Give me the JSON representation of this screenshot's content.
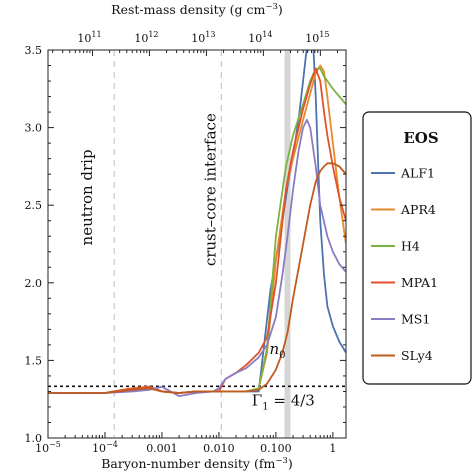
{
  "chart_data": {
    "type": "line",
    "xlabel": "Baryon-number density (fm",
    "xlabel_sup": "−3",
    "xlabel_end": ")",
    "top_xlabel": "Rest-mass density (g cm",
    "top_xlabel_sup": "−3",
    "top_xlabel_end": ")",
    "xscale": "log",
    "xlim": [
      1e-05,
      1.7
    ],
    "ylim": [
      1.0,
      3.5
    ],
    "x_ticks": [
      {
        "value": 1e-05,
        "label": "10",
        "sup": "−5"
      },
      {
        "value": 0.0001,
        "label": "10",
        "sup": "−4"
      },
      {
        "value": 0.001,
        "label": "0.001",
        "sup": ""
      },
      {
        "value": 0.01,
        "label": "0.010",
        "sup": ""
      },
      {
        "value": 0.1,
        "label": "0.100",
        "sup": ""
      },
      {
        "value": 1,
        "label": "1",
        "sup": ""
      }
    ],
    "y_ticks": [
      {
        "value": 1.0,
        "label": "1.0"
      },
      {
        "value": 1.5,
        "label": "1.5"
      },
      {
        "value": 2.0,
        "label": "2.0"
      },
      {
        "value": 2.5,
        "label": "2.5"
      },
      {
        "value": 3.0,
        "label": "3.0"
      },
      {
        "value": 3.5,
        "label": "3.5"
      }
    ],
    "top_ticks": [
      {
        "value": 6.03e-05,
        "label": "10",
        "sup": "11"
      },
      {
        "value": 0.000603,
        "label": "10",
        "sup": "12"
      },
      {
        "value": 0.00603,
        "label": "10",
        "sup": "13"
      },
      {
        "value": 0.0603,
        "label": "10",
        "sup": "14"
      },
      {
        "value": 0.603,
        "label": "10",
        "sup": "15"
      }
    ],
    "annotations": {
      "neutron_drip": {
        "label": "neutron drip",
        "x": 0.000145
      },
      "crust_core": {
        "label": "crust–core interface",
        "x": 0.011
      },
      "n0": {
        "label": "n",
        "sub": "0",
        "x": 0.16
      },
      "gamma": {
        "label": "Γ",
        "sub": "1",
        "rest": " = 4/3",
        "y": 1.3333
      }
    },
    "legend": {
      "title": "EOS",
      "position": "right, outside plot"
    },
    "series": [
      {
        "name": "ALF1",
        "color": "#4d72b0",
        "x": [
          1e-05,
          0.0001,
          0.0003,
          0.0006,
          0.001,
          0.002,
          0.004,
          0.008,
          0.015,
          0.03,
          0.05,
          0.08,
          0.1,
          0.13,
          0.16,
          0.2,
          0.25,
          0.3,
          0.35,
          0.4,
          0.45,
          0.5,
          0.6,
          0.7,
          0.8,
          1.0,
          1.3,
          1.7
        ],
        "y": [
          1.29,
          1.29,
          1.32,
          1.33,
          1.3,
          1.29,
          1.3,
          1.3,
          1.3,
          1.3,
          1.3,
          1.95,
          2.15,
          2.4,
          2.62,
          2.82,
          3.05,
          3.3,
          3.52,
          3.6,
          3.55,
          3.2,
          2.4,
          2.05,
          1.85,
          1.72,
          1.62,
          1.55
        ]
      },
      {
        "name": "APR4",
        "color": "#e8892b",
        "x": [
          1e-05,
          0.0001,
          0.0003,
          0.0006,
          0.001,
          0.002,
          0.004,
          0.008,
          0.015,
          0.03,
          0.05,
          0.07,
          0.1,
          0.15,
          0.2,
          0.3,
          0.4,
          0.5,
          0.6,
          0.7,
          0.8,
          1.0,
          1.3,
          1.7
        ],
        "y": [
          1.29,
          1.29,
          1.32,
          1.33,
          1.3,
          1.29,
          1.3,
          1.3,
          1.3,
          1.3,
          1.32,
          1.55,
          2.15,
          2.6,
          2.8,
          3.05,
          3.22,
          3.35,
          3.4,
          3.36,
          3.2,
          2.9,
          2.55,
          2.25
        ]
      },
      {
        "name": "H4",
        "color": "#7cb342",
        "x": [
          1e-05,
          0.0001,
          0.0003,
          0.0006,
          0.001,
          0.002,
          0.004,
          0.008,
          0.015,
          0.03,
          0.05,
          0.07,
          0.1,
          0.15,
          0.2,
          0.3,
          0.4,
          0.5,
          0.6,
          0.7,
          0.8,
          1.0,
          1.3,
          1.7
        ],
        "y": [
          1.29,
          1.29,
          1.32,
          1.33,
          1.3,
          1.29,
          1.3,
          1.3,
          1.3,
          1.3,
          1.32,
          1.58,
          2.3,
          2.75,
          2.95,
          3.15,
          3.3,
          3.38,
          3.38,
          3.33,
          3.3,
          3.25,
          3.2,
          3.15
        ]
      },
      {
        "name": "MPA1",
        "color": "#e0522b",
        "x": [
          1e-05,
          0.0001,
          0.0003,
          0.0006,
          0.001,
          0.002,
          0.004,
          0.008,
          0.01,
          0.013,
          0.02,
          0.03,
          0.05,
          0.07,
          0.1,
          0.15,
          0.2,
          0.3,
          0.4,
          0.5,
          0.6,
          0.7,
          0.8,
          1.0,
          1.3,
          1.7
        ],
        "y": [
          1.29,
          1.29,
          1.32,
          1.33,
          1.3,
          1.29,
          1.3,
          1.3,
          1.3,
          1.38,
          1.42,
          1.47,
          1.55,
          1.65,
          2.0,
          2.6,
          2.85,
          3.12,
          3.28,
          3.38,
          3.3,
          3.1,
          2.95,
          2.75,
          2.55,
          2.4
        ]
      },
      {
        "name": "MS1",
        "color": "#8a7cc4",
        "x": [
          1e-05,
          0.0001,
          0.0003,
          0.0006,
          0.001,
          0.002,
          0.004,
          0.008,
          0.01,
          0.013,
          0.02,
          0.03,
          0.05,
          0.07,
          0.1,
          0.13,
          0.16,
          0.2,
          0.25,
          0.3,
          0.35,
          0.4,
          0.5,
          0.6,
          0.8,
          1.0,
          1.3,
          1.7
        ],
        "y": [
          1.29,
          1.29,
          1.3,
          1.31,
          1.33,
          1.27,
          1.29,
          1.3,
          1.32,
          1.38,
          1.42,
          1.45,
          1.52,
          1.6,
          1.78,
          2.05,
          2.3,
          2.6,
          2.85,
          3.0,
          3.05,
          3.0,
          2.75,
          2.5,
          2.3,
          2.2,
          2.12,
          2.07
        ]
      },
      {
        "name": "SLy4",
        "color": "#c05a1d",
        "x": [
          1e-05,
          0.0001,
          0.0003,
          0.0006,
          0.001,
          0.002,
          0.004,
          0.008,
          0.015,
          0.03,
          0.05,
          0.07,
          0.1,
          0.13,
          0.16,
          0.2,
          0.3,
          0.4,
          0.5,
          0.6,
          0.7,
          0.8,
          1.0,
          1.3,
          1.7
        ],
        "y": [
          1.29,
          1.29,
          1.31,
          1.32,
          1.3,
          1.29,
          1.3,
          1.3,
          1.3,
          1.3,
          1.31,
          1.35,
          1.44,
          1.55,
          1.68,
          1.9,
          2.25,
          2.5,
          2.65,
          2.72,
          2.75,
          2.77,
          2.77,
          2.75,
          2.7
        ]
      }
    ]
  }
}
